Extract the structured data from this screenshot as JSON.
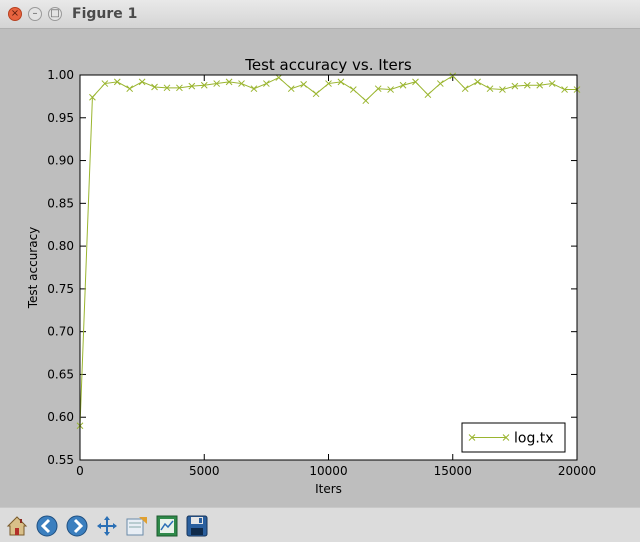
{
  "window": {
    "title": "Figure 1"
  },
  "toolbar": {
    "buttons": [
      {
        "name": "home-icon"
      },
      {
        "name": "back-icon"
      },
      {
        "name": "forward-icon"
      },
      {
        "name": "pan-icon"
      },
      {
        "name": "zoom-icon"
      },
      {
        "name": "subplots-icon"
      },
      {
        "name": "save-icon"
      }
    ]
  },
  "colors": {
    "line": "#9ab52f",
    "background": "#bebebe"
  },
  "chart_data": {
    "type": "line",
    "title": "Test accuracy  vs. Iters",
    "xlabel": "Iters",
    "ylabel": "Test accuracy",
    "xlim": [
      0,
      20000
    ],
    "ylim": [
      0.55,
      1.0
    ],
    "xticks": [
      "0",
      "5000",
      "10000",
      "15000",
      "20000"
    ],
    "yticks": [
      "0.55",
      "0.60",
      "0.65",
      "0.70",
      "0.75",
      "0.80",
      "0.85",
      "0.90",
      "0.95",
      "1.00"
    ],
    "legend": {
      "position": "lower-right"
    },
    "grid": false,
    "series": [
      {
        "name": "log.tx",
        "marker": "x",
        "color": "#9ab52f",
        "x": [
          0,
          500,
          1000,
          1500,
          2000,
          2500,
          3000,
          3500,
          4000,
          4500,
          5000,
          5500,
          6000,
          6500,
          7000,
          7500,
          8000,
          8500,
          9000,
          9500,
          10000,
          10500,
          11000,
          11500,
          12000,
          12500,
          13000,
          13500,
          14000,
          14500,
          15000,
          15500,
          16000,
          16500,
          17000,
          17500,
          18000,
          18500,
          19000,
          19500,
          20000
        ],
        "y": [
          0.59,
          0.974,
          0.99,
          0.992,
          0.984,
          0.992,
          0.986,
          0.985,
          0.985,
          0.987,
          0.988,
          0.99,
          0.992,
          0.99,
          0.984,
          0.99,
          0.997,
          0.984,
          0.989,
          0.978,
          0.99,
          0.992,
          0.983,
          0.97,
          0.984,
          0.983,
          0.988,
          0.992,
          0.977,
          0.99,
          0.999,
          0.984,
          0.992,
          0.984,
          0.983,
          0.987,
          0.988,
          0.988,
          0.99,
          0.983,
          0.983
        ]
      }
    ]
  }
}
